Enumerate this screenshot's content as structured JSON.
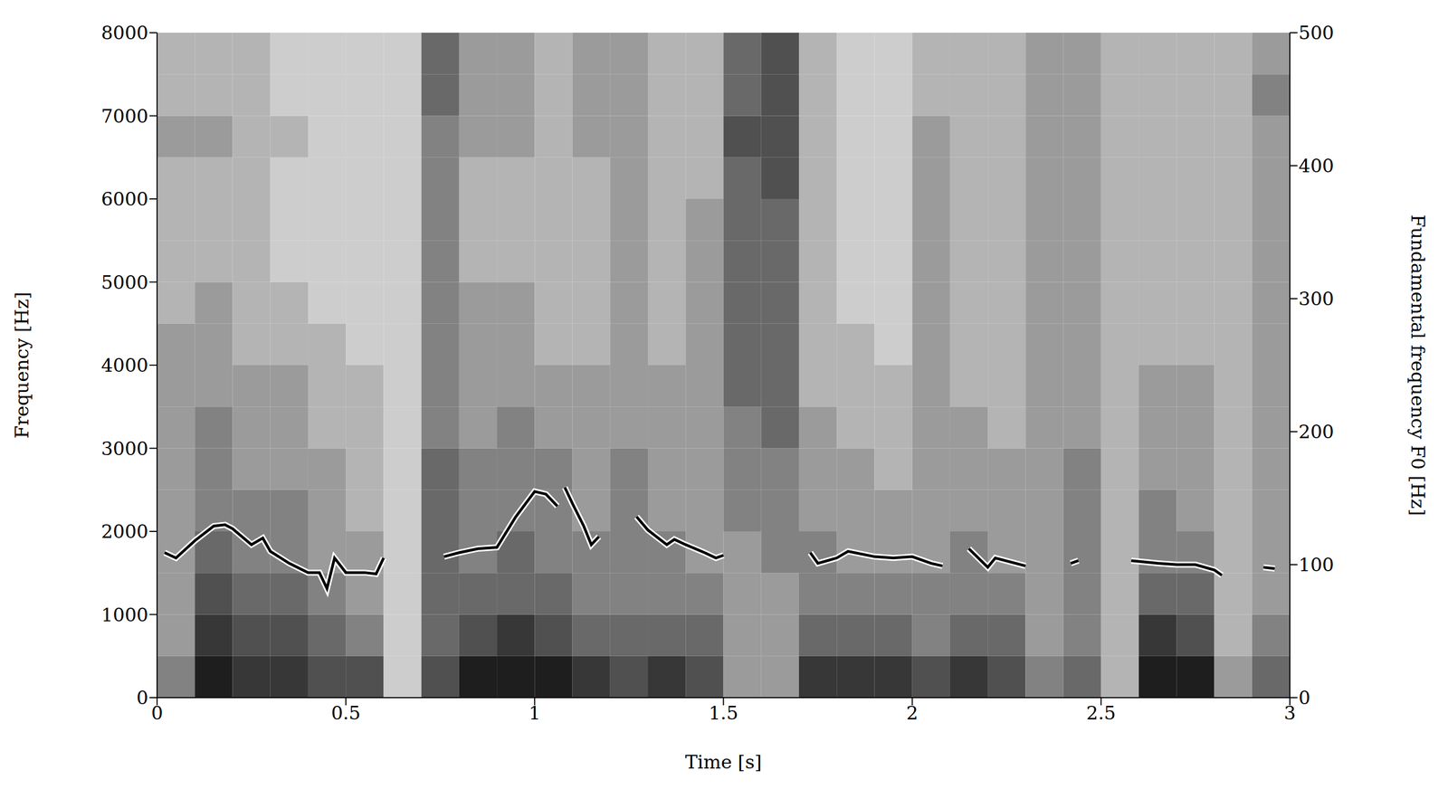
{
  "chart_data": {
    "type": "spectrogram",
    "xlabel": "Time [s]",
    "ylabel": "Frequency [Hz]",
    "y2label": "Fundamental frequency F0 [Hz]",
    "xlim": [
      0,
      3
    ],
    "xticks": [
      0,
      0.5,
      1,
      1.5,
      2,
      2.5,
      3
    ],
    "ylim": [
      0,
      8000
    ],
    "yticks": [
      0,
      1000,
      2000,
      3000,
      4000,
      5000,
      6000,
      7000,
      8000
    ],
    "y2lim": [
      0,
      500
    ],
    "y2ticks": [
      0,
      100,
      200,
      300,
      400,
      500
    ],
    "spectrogram": {
      "x_edges": [
        0,
        0.1,
        0.2,
        0.3,
        0.4,
        0.5,
        0.6,
        0.7,
        0.8,
        0.9,
        1.0,
        1.1,
        1.2,
        1.3,
        1.4,
        1.5,
        1.6,
        1.7,
        1.8,
        1.9,
        2.0,
        2.1,
        2.2,
        2.3,
        2.4,
        2.5,
        2.6,
        2.7,
        2.8,
        2.9,
        3.0
      ],
      "y_edges": [
        0,
        500,
        1000,
        1500,
        2000,
        2500,
        3000,
        3500,
        4000,
        4500,
        5000,
        5500,
        6000,
        6500,
        7000,
        7500,
        8000
      ],
      "cells": [
        [
          5,
          4,
          4,
          4,
          4,
          4,
          4,
          4,
          4,
          3,
          3,
          3,
          3,
          4,
          3,
          3
        ],
        [
          9,
          8,
          7,
          6,
          5,
          5,
          5,
          4,
          4,
          4,
          3,
          3,
          3,
          4,
          3,
          3
        ],
        [
          8,
          7,
          6,
          5,
          5,
          4,
          4,
          4,
          3,
          3,
          3,
          3,
          3,
          3,
          3,
          3
        ],
        [
          8,
          7,
          6,
          5,
          5,
          4,
          4,
          4,
          3,
          3,
          2,
          2,
          2,
          3,
          2,
          2
        ],
        [
          7,
          6,
          5,
          4,
          4,
          4,
          3,
          3,
          3,
          2,
          2,
          2,
          2,
          2,
          2,
          2
        ],
        [
          7,
          5,
          4,
          4,
          3,
          3,
          3,
          3,
          2,
          2,
          2,
          2,
          2,
          2,
          2,
          2
        ],
        [
          2,
          2,
          2,
          2,
          2,
          2,
          2,
          2,
          2,
          2,
          2,
          2,
          2,
          2,
          2,
          2
        ],
        [
          7,
          6,
          6,
          6,
          6,
          6,
          5,
          5,
          5,
          5,
          5,
          5,
          5,
          5,
          6,
          6
        ],
        [
          9,
          7,
          6,
          5,
          5,
          5,
          4,
          4,
          4,
          4,
          3,
          3,
          3,
          4,
          4,
          4
        ],
        [
          9,
          8,
          6,
          6,
          5,
          5,
          5,
          4,
          4,
          4,
          3,
          3,
          3,
          4,
          4,
          4
        ],
        [
          9,
          7,
          6,
          5,
          5,
          5,
          4,
          4,
          3,
          3,
          3,
          3,
          3,
          3,
          3,
          3
        ],
        [
          8,
          6,
          5,
          5,
          4,
          4,
          4,
          4,
          3,
          3,
          3,
          3,
          3,
          4,
          4,
          4
        ],
        [
          7,
          6,
          5,
          5,
          5,
          5,
          4,
          4,
          4,
          4,
          4,
          4,
          4,
          4,
          4,
          4
        ],
        [
          8,
          6,
          5,
          5,
          4,
          4,
          4,
          4,
          3,
          3,
          3,
          3,
          3,
          3,
          3,
          3
        ],
        [
          7,
          6,
          5,
          4,
          4,
          4,
          4,
          4,
          4,
          4,
          4,
          4,
          3,
          3,
          3,
          3
        ],
        [
          4,
          4,
          4,
          4,
          5,
          5,
          5,
          6,
          6,
          6,
          6,
          6,
          6,
          7,
          6,
          6
        ],
        [
          4,
          4,
          4,
          5,
          5,
          5,
          6,
          6,
          6,
          6,
          6,
          6,
          7,
          7,
          7,
          7
        ],
        [
          8,
          6,
          5,
          5,
          4,
          4,
          4,
          3,
          3,
          3,
          3,
          3,
          3,
          3,
          3,
          3
        ],
        [
          8,
          6,
          5,
          4,
          4,
          4,
          3,
          3,
          3,
          2,
          2,
          2,
          2,
          2,
          2,
          2
        ],
        [
          8,
          6,
          5,
          4,
          4,
          3,
          3,
          3,
          2,
          2,
          2,
          2,
          2,
          2,
          2,
          2
        ],
        [
          7,
          5,
          5,
          4,
          4,
          4,
          4,
          4,
          4,
          4,
          4,
          4,
          4,
          4,
          3,
          3
        ],
        [
          8,
          6,
          5,
          5,
          4,
          4,
          4,
          3,
          3,
          3,
          3,
          3,
          3,
          3,
          3,
          3
        ],
        [
          7,
          6,
          5,
          4,
          4,
          4,
          3,
          3,
          3,
          3,
          3,
          3,
          3,
          3,
          3,
          3
        ],
        [
          5,
          4,
          4,
          4,
          4,
          4,
          4,
          4,
          4,
          4,
          4,
          4,
          4,
          4,
          4,
          4
        ],
        [
          6,
          5,
          5,
          5,
          5,
          5,
          4,
          4,
          4,
          4,
          4,
          4,
          4,
          4,
          4,
          4
        ],
        [
          3,
          3,
          3,
          3,
          3,
          3,
          3,
          3,
          3,
          3,
          3,
          3,
          3,
          3,
          3,
          3
        ],
        [
          9,
          8,
          6,
          5,
          5,
          4,
          4,
          4,
          3,
          3,
          3,
          3,
          3,
          3,
          3,
          3
        ],
        [
          9,
          7,
          6,
          5,
          4,
          4,
          4,
          4,
          3,
          3,
          3,
          3,
          3,
          3,
          3,
          3
        ],
        [
          4,
          3,
          3,
          3,
          3,
          3,
          3,
          3,
          3,
          3,
          3,
          3,
          3,
          3,
          3,
          3
        ],
        [
          6,
          5,
          4,
          4,
          4,
          4,
          4,
          4,
          4,
          4,
          4,
          4,
          4,
          4,
          5,
          4
        ]
      ]
    },
    "series": [
      {
        "color": "#000000",
        "axis": "y2",
        "x": [
          0.02,
          0.05,
          0.1,
          0.15,
          0.18,
          0.2,
          0.25,
          0.28,
          0.3,
          0.35,
          0.4,
          0.43,
          0.45,
          0.47,
          0.5,
          0.55,
          0.58,
          0.6,
          0.68,
          0.76,
          0.8,
          0.85,
          0.9,
          0.95,
          1.0,
          1.03,
          1.06,
          1.07,
          1.08,
          1.1,
          1.13,
          1.15,
          1.17,
          1.22,
          1.27,
          1.3,
          1.35,
          1.37,
          1.4,
          1.45,
          1.48,
          1.5,
          1.6,
          1.73,
          1.75,
          1.8,
          1.83,
          1.9,
          1.95,
          2.0,
          2.05,
          2.08,
          2.12,
          2.15,
          2.2,
          2.22,
          2.3,
          2.36,
          2.42,
          2.44,
          2.5,
          2.58,
          2.65,
          2.7,
          2.75,
          2.8,
          2.82,
          2.88,
          2.93,
          2.96
        ],
        "values": [
          109,
          105,
          118,
          129,
          130,
          127,
          115,
          120,
          110,
          101,
          94,
          94,
          82,
          105,
          94,
          94,
          93,
          105,
          null,
          106,
          109,
          112,
          113,
          136,
          155,
          153,
          144,
          null,
          158,
          146,
          129,
          115,
          121,
          null,
          136,
          126,
          115,
          119,
          115,
          109,
          105,
          107,
          null,
          109,
          101,
          105,
          110,
          106,
          105,
          106,
          101,
          99,
          null,
          112,
          98,
          105,
          99,
          null,
          101,
          103,
          null,
          103,
          101,
          100,
          100,
          96,
          92,
          null,
          98,
          97
        ]
      }
    ]
  }
}
